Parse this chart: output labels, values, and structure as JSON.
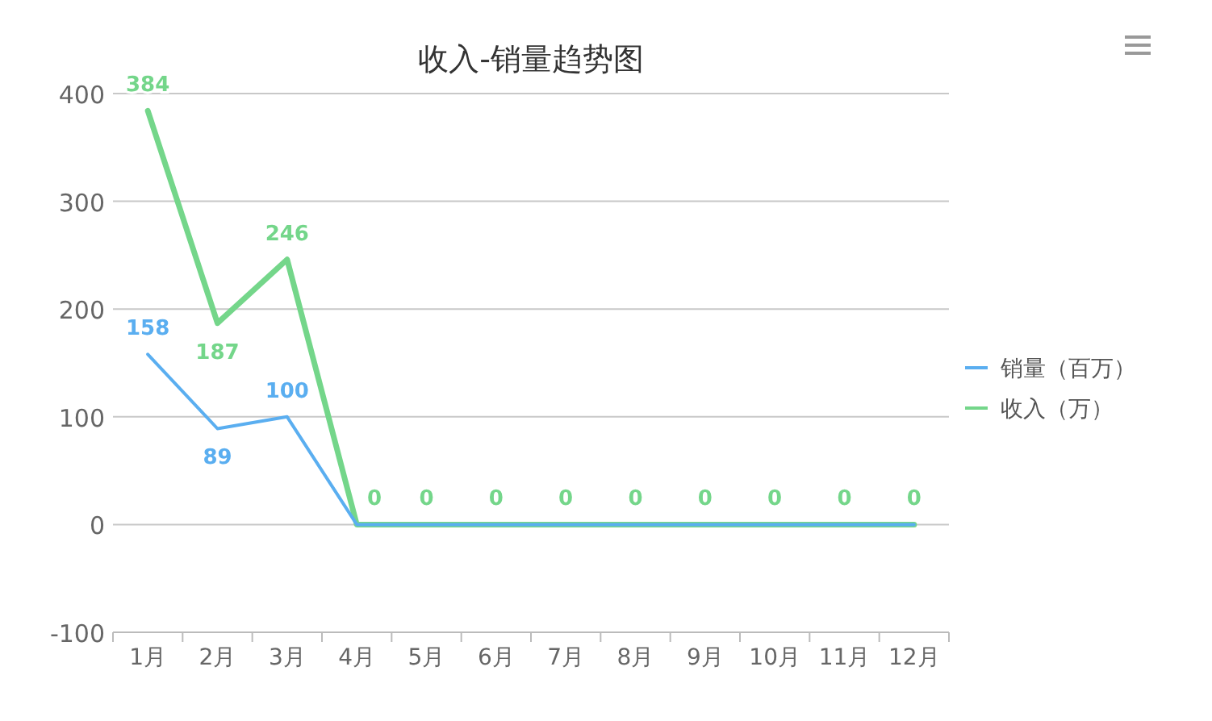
{
  "chart_data": {
    "type": "line",
    "title": "收入-销量趋势图",
    "categories": [
      "1月",
      "2月",
      "3月",
      "4月",
      "5月",
      "6月",
      "7月",
      "8月",
      "9月",
      "10月",
      "11月",
      "12月"
    ],
    "series": [
      {
        "name": "销量（百万）",
        "color": "#5aaef0",
        "values": [
          158,
          89,
          100,
          0,
          0,
          0,
          0,
          0,
          0,
          0,
          0,
          0
        ],
        "value_labels": [
          "158",
          "89",
          "100",
          null,
          null,
          null,
          null,
          null,
          null,
          null,
          null,
          null
        ]
      },
      {
        "name": "收入（万）",
        "color": "#74d68a",
        "values": [
          384,
          187,
          246,
          0,
          0,
          0,
          0,
          0,
          0,
          0,
          0,
          0
        ],
        "value_labels": [
          "384",
          "187",
          "246",
          "0",
          "0",
          "0",
          "0",
          "0",
          "0",
          "0",
          "0",
          "0"
        ]
      }
    ],
    "ylim": [
      -100,
      400
    ],
    "yticks": [
      -100,
      0,
      100,
      200,
      300,
      400
    ],
    "grid": "y",
    "legend": "right",
    "marker": "none",
    "data_labels": true
  }
}
